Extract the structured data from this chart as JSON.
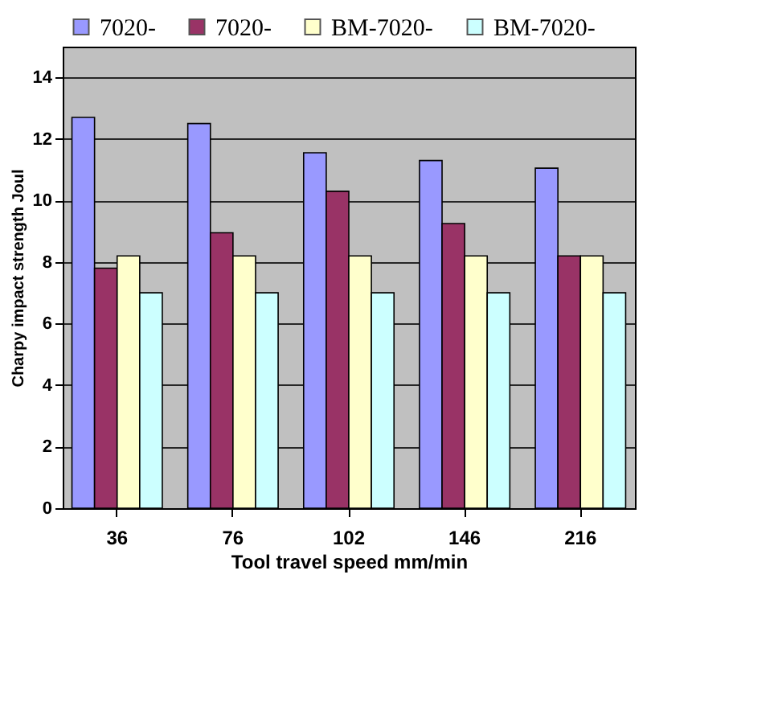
{
  "chart_data": {
    "type": "bar",
    "xlabel": "Tool travel speed mm/min",
    "ylabel": "Charpy impact strength Joul",
    "categories": [
      "36",
      "76",
      "102",
      "146",
      "216"
    ],
    "series": [
      {
        "name": "7020-",
        "color": "#9999ff",
        "values": [
          12.7,
          12.5,
          11.55,
          11.3,
          11.05
        ]
      },
      {
        "name": "7020-",
        "color": "#993366",
        "values": [
          7.8,
          8.95,
          10.3,
          9.25,
          8.2
        ]
      },
      {
        "name": "BM-7020-",
        "color": "#ffffcc",
        "values": [
          8.2,
          8.2,
          8.2,
          8.2,
          8.2
        ]
      },
      {
        "name": "BM-7020-",
        "color": "#ccffff",
        "values": [
          7.0,
          7.0,
          7.0,
          7.0,
          7.0
        ]
      }
    ],
    "ylim": [
      0,
      15
    ],
    "yticks": [
      0,
      2,
      4,
      6,
      8,
      10,
      12,
      14
    ],
    "grid": "y",
    "legend": "top"
  }
}
